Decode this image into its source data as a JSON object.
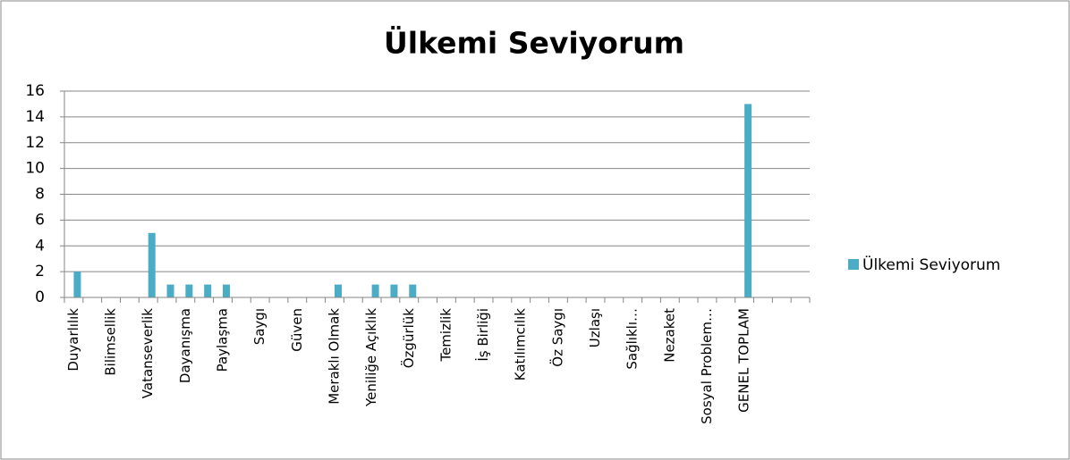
{
  "chart_data": {
    "type": "bar",
    "title": "Ülkemi Seviyorum",
    "categories": [
      "Duyarlılık",
      null,
      "Bilimsellik",
      null,
      "Vatanseverlik",
      null,
      "Dayanışma",
      null,
      "Paylaşma",
      null,
      "Saygı",
      null,
      "Güven",
      null,
      "Meraklı Olmak",
      null,
      "Yeniliğe Açıklık",
      null,
      "Özgürlük",
      null,
      "Temizlik",
      null,
      "İş Birliği",
      null,
      "Katılımcılık",
      null,
      "Öz Saygı",
      null,
      "Uzlaşı",
      null,
      "Sağlıklı…",
      null,
      "Nezaket",
      null,
      "Sosyal Problem…",
      null,
      "GENEL TOPLAM",
      null,
      null,
      null
    ],
    "series": [
      {
        "name": "Ülkemi Seviyorum",
        "color": "#4bacc6",
        "values": [
          2,
          0,
          0,
          0,
          5,
          1,
          1,
          1,
          1,
          0,
          0,
          0,
          0,
          0,
          1,
          0,
          1,
          1,
          1,
          0,
          0,
          0,
          0,
          0,
          0,
          0,
          0,
          0,
          0,
          0,
          0,
          0,
          0,
          0,
          0,
          0,
          15,
          null,
          null,
          null
        ]
      }
    ],
    "ylim": [
      0,
      16
    ],
    "yticks": [
      0,
      2,
      4,
      6,
      8,
      10,
      12,
      14,
      16
    ],
    "grid": true,
    "legend": "right"
  }
}
